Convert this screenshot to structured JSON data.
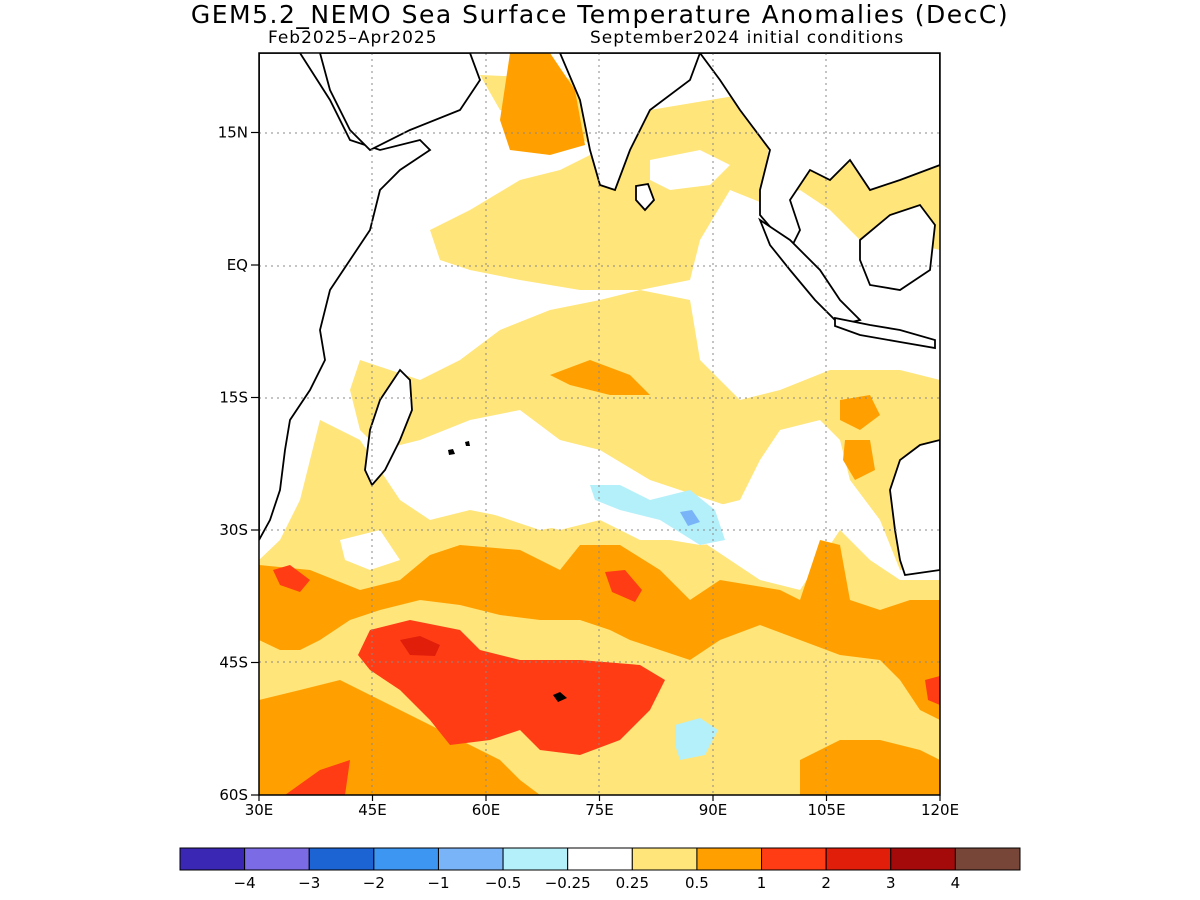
{
  "title": "GEM5.2_NEMO Sea Surface Temperature Anomalies (DecC)",
  "subtitle_left": "Feb2025–Apr2025",
  "subtitle_right": "September2024 initial conditions",
  "map": {
    "lon_range": [
      30,
      120
    ],
    "lat_range": [
      -60,
      24
    ],
    "lat_ticks": [
      {
        "value": 15,
        "label": "15N"
      },
      {
        "value": 0,
        "label": "EQ"
      },
      {
        "value": -15,
        "label": "15S"
      },
      {
        "value": -30,
        "label": "30S"
      },
      {
        "value": -45,
        "label": "45S"
      },
      {
        "value": -60,
        "label": "60S"
      }
    ],
    "lon_ticks": [
      {
        "value": 30,
        "label": "30E"
      },
      {
        "value": 45,
        "label": "45E"
      },
      {
        "value": 60,
        "label": "60E"
      },
      {
        "value": 75,
        "label": "75E"
      },
      {
        "value": 90,
        "label": "90E"
      },
      {
        "value": 105,
        "label": "105E"
      },
      {
        "value": 120,
        "label": "120E"
      }
    ],
    "grid": true
  },
  "colorbar": {
    "colors": [
      "#3a28b4",
      "#7b6ce6",
      "#1c64d4",
      "#3c96f2",
      "#7ab4f8",
      "#b4f0fa",
      "#ffffff",
      "#ffe57a",
      "#ffa000",
      "#ff3c14",
      "#e11e0a",
      "#a50a0a",
      "#784638"
    ],
    "labels": [
      "−4",
      "−3",
      "−2",
      "−1",
      "−0.5",
      "−0.25",
      "0.25",
      "0.5",
      "1",
      "2",
      "3",
      "4"
    ]
  }
}
